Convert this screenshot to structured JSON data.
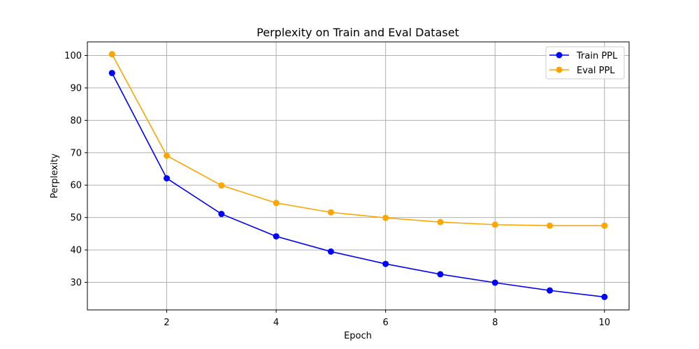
{
  "chart_data": {
    "type": "line",
    "title": "Perplexity on Train and Eval Dataset",
    "xlabel": "Epoch",
    "ylabel": "Perplexity",
    "xlim": [
      0.55,
      10.45
    ],
    "ylim": [
      21.5,
      104.2
    ],
    "xticks": [
      2,
      4,
      6,
      8,
      10
    ],
    "yticks": [
      30,
      40,
      50,
      60,
      70,
      80,
      90,
      100
    ],
    "grid": true,
    "legend_position": "top-right",
    "x": [
      1,
      2,
      3,
      4,
      5,
      6,
      7,
      8,
      9,
      10
    ],
    "series": [
      {
        "name": "Train PPL",
        "color": "#0000ff",
        "marker": "circle",
        "values": [
          94.6,
          62.1,
          51.1,
          44.2,
          39.5,
          35.7,
          32.5,
          29.9,
          27.5,
          25.5
        ]
      },
      {
        "name": "Eval PPL",
        "color": "#ffa500",
        "marker": "circle",
        "values": [
          100.4,
          69.1,
          59.9,
          54.5,
          51.6,
          49.9,
          48.6,
          47.8,
          47.5,
          47.5
        ]
      }
    ]
  }
}
